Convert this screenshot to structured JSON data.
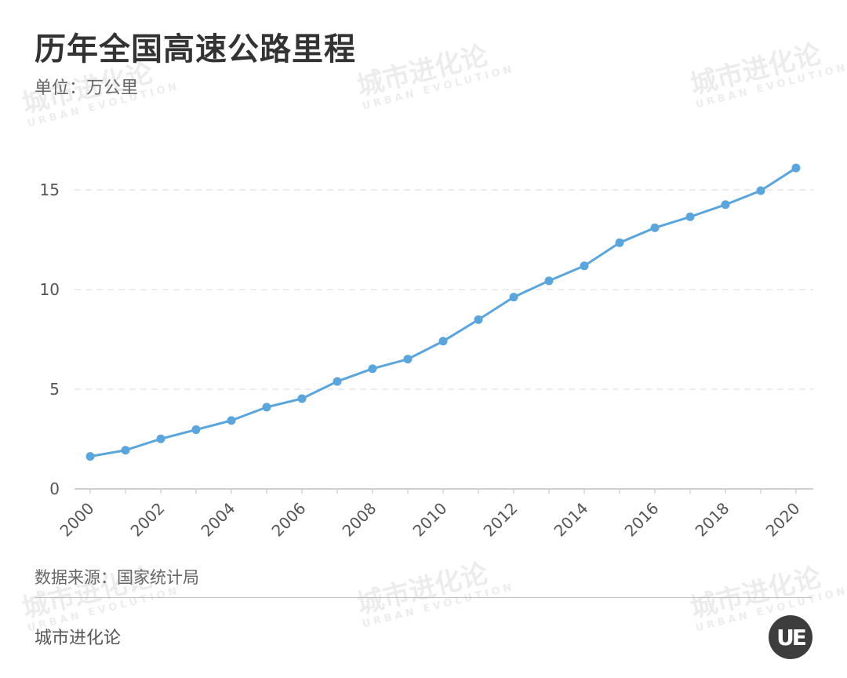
{
  "title": "历年全国高速公路里程",
  "unit": "单位：万公里",
  "source": "数据来源：国家统计局",
  "brand": "城市进化论",
  "logo_text": "UE",
  "watermark": {
    "cn": "城市进化论",
    "en": "URBAN EVOLUTION"
  },
  "colors": {
    "line": "#5aa5dc",
    "grid": "#d9d9d9",
    "axis": "#bfbfbf",
    "text": "#555555"
  },
  "chart_data": {
    "type": "line",
    "title": "历年全国高速公路里程",
    "ylabel": "单位：万公里",
    "x": [
      2000,
      2001,
      2002,
      2003,
      2004,
      2005,
      2006,
      2007,
      2008,
      2009,
      2010,
      2011,
      2012,
      2013,
      2014,
      2015,
      2016,
      2017,
      2018,
      2019,
      2020
    ],
    "series": [
      {
        "name": "",
        "values": [
          1.63,
          1.94,
          2.51,
          2.97,
          3.43,
          4.1,
          4.53,
          5.39,
          6.03,
          6.51,
          7.41,
          8.49,
          9.62,
          10.44,
          11.19,
          12.35,
          13.1,
          13.65,
          14.26,
          14.96,
          16.1
        ]
      }
    ],
    "ylim": [
      0,
      18
    ],
    "yticks": [
      0,
      5,
      10,
      15
    ],
    "xticks": [
      2000,
      2002,
      2004,
      2006,
      2008,
      2010,
      2012,
      2014,
      2016,
      2018,
      2020
    ],
    "grid": true,
    "legend": "none"
  }
}
